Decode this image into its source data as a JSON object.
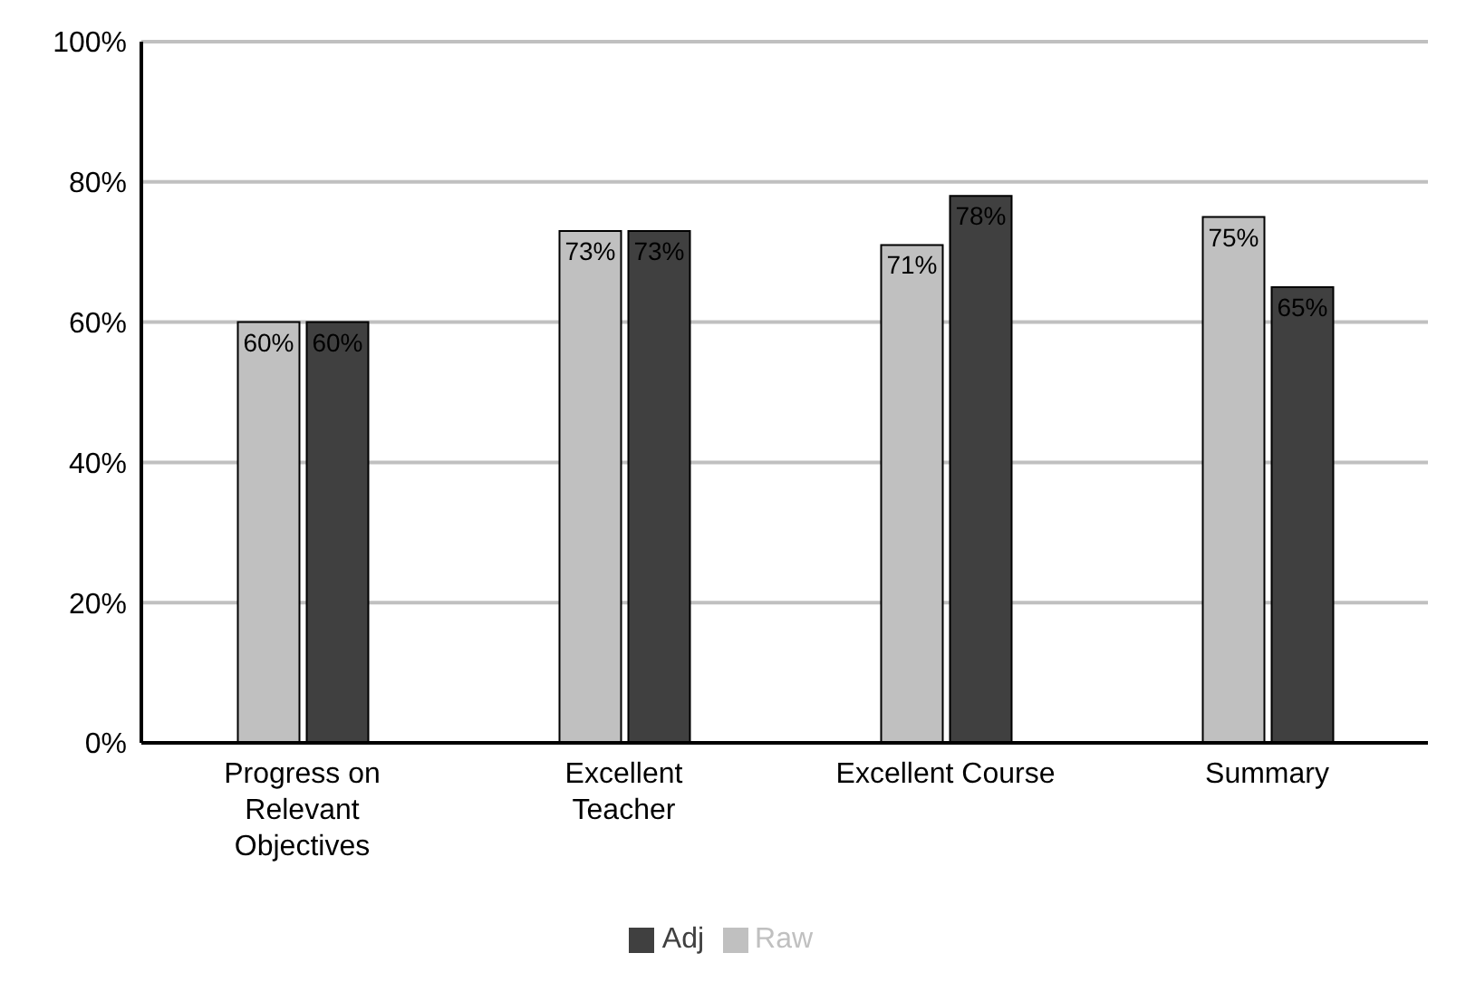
{
  "chart_data": {
    "type": "bar",
    "categories": [
      "Progress on Relevant Objectives",
      "Excellent Teacher",
      "Excellent Course",
      "Summary"
    ],
    "series": [
      {
        "name": "Raw",
        "color": "#c0c0c0",
        "values": [
          60,
          73,
          71,
          75
        ],
        "value_labels": [
          "60%",
          "73%",
          "71%",
          "75%"
        ]
      },
      {
        "name": "Adj",
        "color": "#404040",
        "values": [
          60,
          73,
          78,
          65
        ],
        "value_labels": [
          "60%",
          "73%",
          "78%",
          "65%"
        ]
      }
    ],
    "ylim": [
      0,
      100
    ],
    "yticks": [
      {
        "value": 0,
        "label": "0%"
      },
      {
        "value": 20,
        "label": "20%"
      },
      {
        "value": 40,
        "label": "40%"
      },
      {
        "value": 60,
        "label": "60%"
      },
      {
        "value": 80,
        "label": "80%"
      },
      {
        "value": 100,
        "label": "100%"
      }
    ],
    "grid": "y",
    "legend": "bottom"
  }
}
